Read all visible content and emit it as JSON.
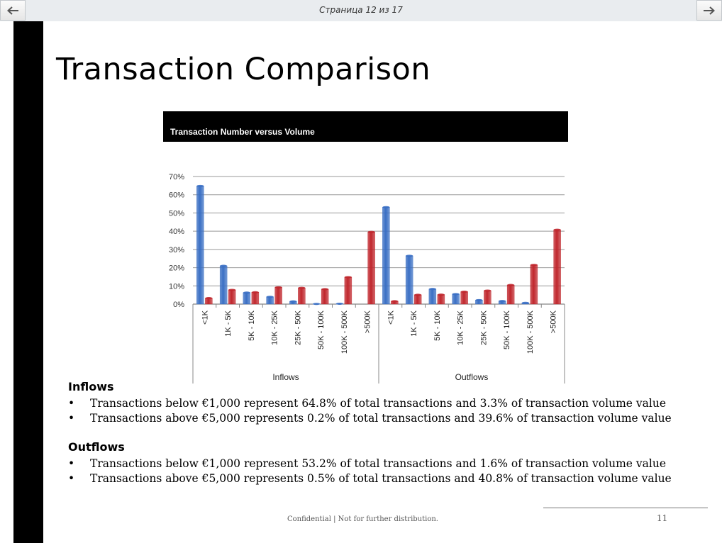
{
  "viewer": {
    "page_counter": "Страница 12 из 17",
    "prev_icon": "arrow-left-icon",
    "next_icon": "arrow-right-icon"
  },
  "slide": {
    "title": "Transaction Comparison",
    "chart_title": "Transaction Number versus Volume",
    "sections": [
      {
        "heading": "Inflows",
        "bullets": [
          "Transactions below €1,000 represent 64.8% of total transactions and 3.3% of transaction volume value",
          "Transactions above €5,000 represents 0.2% of total transactions and 39.6% of transaction volume value"
        ]
      },
      {
        "heading": "Outflows",
        "bullets": [
          "Transactions below €1,000 represent 53.2% of total transactions and 1.6% of transaction volume value",
          "Transactions above €5,000 represents 0.5% of total transactions and 40.8% of transaction volume value"
        ]
      }
    ],
    "bullet_char": "•",
    "footer": "Confidential | Not for further distribution.",
    "page_number": "11"
  },
  "chart_data": {
    "type": "bar",
    "title": "Transaction Number versus Volume",
    "groups": [
      {
        "name": "Inflows",
        "categories": [
          "<1K",
          "1K - 5K",
          "5K - 10K",
          "10K - 25K",
          "25K - 50K",
          "50K - 100K",
          "100K - 500K",
          ">500K"
        ]
      },
      {
        "name": "Outflows",
        "categories": [
          "<1K",
          "1K - 5K",
          "5K - 10K",
          "10K - 25K",
          "25K - 50K",
          "50K - 100K",
          "100K - 500K",
          ">500K"
        ]
      }
    ],
    "series": [
      {
        "name": "#",
        "color": "#3a6fc4",
        "values": [
          64.8,
          21,
          6.3,
          4,
          1.5,
          0.1,
          0.2,
          0,
          53.2,
          26.5,
          8.3,
          5.5,
          2.2,
          1.7,
          0.7,
          0
        ]
      },
      {
        "name": "Volume",
        "color": "#c0272d",
        "values": [
          3.3,
          7.8,
          6.5,
          9.2,
          8.9,
          8.2,
          14.8,
          39.6,
          1.6,
          5.1,
          5.2,
          6.8,
          7.4,
          10.5,
          21.5,
          40.8
        ]
      }
    ],
    "y_ticks": [
      "0%",
      "10%",
      "20%",
      "30%",
      "40%",
      "50%",
      "60%",
      "70%"
    ],
    "ylim": [
      0,
      70
    ],
    "grid": true,
    "legend": "bottom"
  }
}
